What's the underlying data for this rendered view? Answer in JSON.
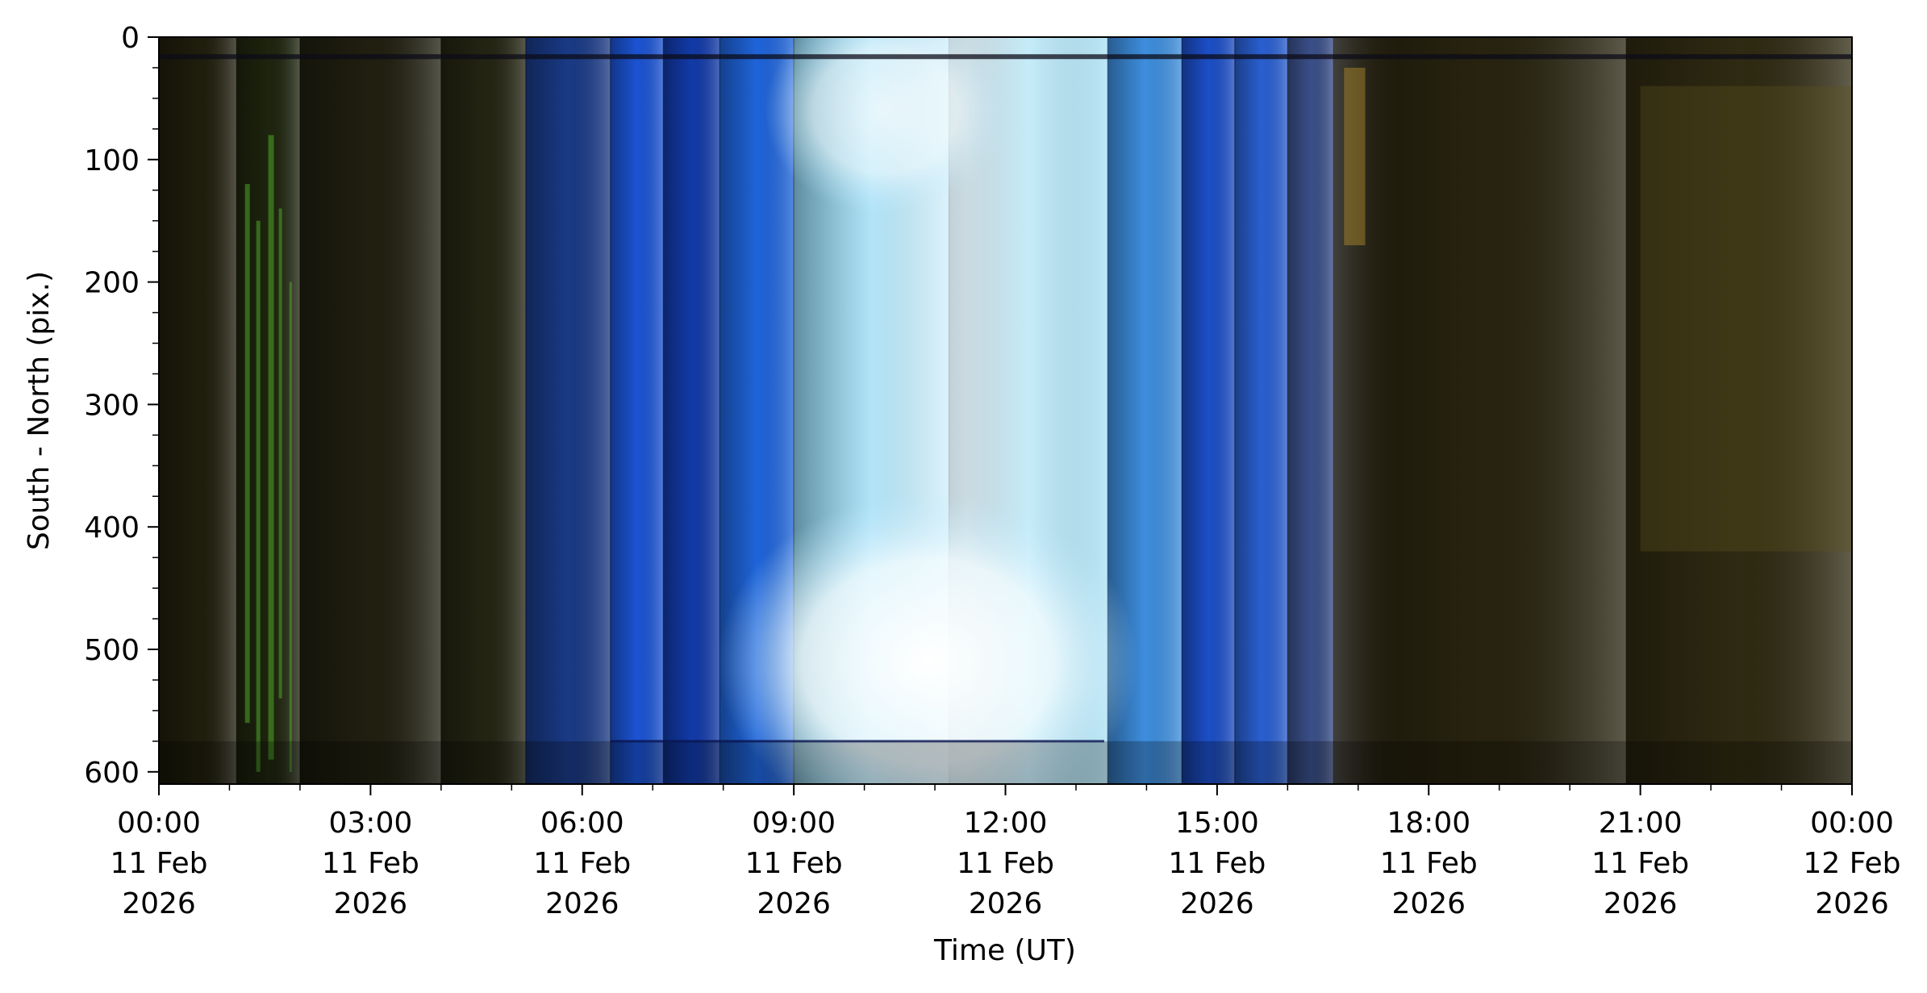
{
  "chart_data": {
    "type": "heatmap",
    "title": "",
    "xlabel": "Time (UT)",
    "ylabel": "South - North (pix.)",
    "x_range": [
      "2026-02-11T00:00",
      "2026-02-12T00:00"
    ],
    "y_range": [
      0,
      610
    ],
    "y_inverted": true,
    "x_ticks": [
      {
        "time": "2026-02-11T00:00",
        "lines": [
          "00:00",
          "11 Feb",
          "2026"
        ]
      },
      {
        "time": "2026-02-11T03:00",
        "lines": [
          "03:00",
          "11 Feb",
          "2026"
        ]
      },
      {
        "time": "2026-02-11T06:00",
        "lines": [
          "06:00",
          "11 Feb",
          "2026"
        ]
      },
      {
        "time": "2026-02-11T09:00",
        "lines": [
          "09:00",
          "11 Feb",
          "2026"
        ]
      },
      {
        "time": "2026-02-11T12:00",
        "lines": [
          "12:00",
          "11 Feb",
          "2026"
        ]
      },
      {
        "time": "2026-02-11T15:00",
        "lines": [
          "15:00",
          "11 Feb",
          "2026"
        ]
      },
      {
        "time": "2026-02-11T18:00",
        "lines": [
          "18:00",
          "11 Feb",
          "2026"
        ]
      },
      {
        "time": "2026-02-11T21:00",
        "lines": [
          "21:00",
          "11 Feb",
          "2026"
        ]
      },
      {
        "time": "2026-02-12T00:00",
        "lines": [
          "00:00",
          "12 Feb",
          "2026"
        ]
      }
    ],
    "y_ticks": [
      0,
      100,
      200,
      300,
      400,
      500,
      600
    ],
    "grid": false,
    "bands": [
      {
        "start": 0.0,
        "end": 1.1,
        "color": "#1f1d0c"
      },
      {
        "start": 1.1,
        "end": 2.0,
        "color": "#1e240e"
      },
      {
        "start": 2.0,
        "end": 4.0,
        "color": "#201f10"
      },
      {
        "start": 4.0,
        "end": 5.2,
        "color": "#232412"
      },
      {
        "start": 5.2,
        "end": 6.4,
        "color": "#1a3a86"
      },
      {
        "start": 6.4,
        "end": 7.15,
        "color": "#1b53d2"
      },
      {
        "start": 7.15,
        "end": 7.95,
        "color": "#123aa8"
      },
      {
        "start": 7.95,
        "end": 9.0,
        "color": "#1f64da"
      },
      {
        "start": 9.0,
        "end": 11.2,
        "color": "#8fd8f4"
      },
      {
        "start": 11.2,
        "end": 13.45,
        "color": "#a9e2f6"
      },
      {
        "start": 13.45,
        "end": 14.5,
        "color": "#3e8ede"
      },
      {
        "start": 14.5,
        "end": 15.25,
        "color": "#1c4ec6"
      },
      {
        "start": 15.25,
        "end": 16.0,
        "color": "#2a5fd0"
      },
      {
        "start": 16.0,
        "end": 16.65,
        "color": "#3a4f88"
      },
      {
        "start": 16.65,
        "end": 20.8,
        "color": "#27230f"
      },
      {
        "start": 20.8,
        "end": 24.0,
        "color": "#2f2a12"
      }
    ]
  }
}
